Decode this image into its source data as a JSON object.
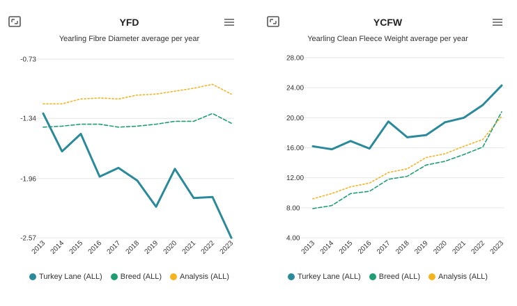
{
  "colors": {
    "turkey_lane": "#2a8a9a",
    "breed": "#1f9e73",
    "analysis": "#f5b320",
    "grid": "#e6e6e6",
    "icon": "#555555"
  },
  "panels": {
    "left": {
      "title": "YFD",
      "subtitle": "Yearling Fibre Diameter average per year",
      "icons": [
        "expand-icon",
        "menu-icon"
      ]
    },
    "right": {
      "title": "YCFW",
      "subtitle": "Yearling Clean Fleece Weight average per year",
      "icons": [
        "expand-icon",
        "menu-icon"
      ]
    }
  },
  "legend": [
    {
      "label": "Turkey Lane (ALL)",
      "color": "#2a8a9a"
    },
    {
      "label": "Breed (ALL)",
      "color": "#1f9e73"
    },
    {
      "label": "Analysis (ALL)",
      "color": "#f5b320"
    }
  ],
  "chart_data": [
    {
      "type": "line",
      "title": "YFD",
      "subtitle": "Yearling Fibre Diameter average per year",
      "categories": [
        "2013",
        "2014",
        "2015",
        "2016",
        "2017",
        "2018",
        "2019",
        "2020",
        "2021",
        "2022",
        "2023"
      ],
      "yticks": [
        "-0.73",
        "-1.34",
        "-1.96",
        "-2.57"
      ],
      "ylim": [
        -2.57,
        -0.73
      ],
      "grid": true,
      "legend_position": "bottom",
      "series": [
        {
          "name": "Turkey Lane (ALL)",
          "style": "solid",
          "color": "#2a8a9a",
          "values": [
            -1.29,
            -1.68,
            -1.5,
            -1.94,
            -1.85,
            -1.98,
            -2.25,
            -1.86,
            -2.16,
            -2.15,
            -2.57
          ]
        },
        {
          "name": "Breed (ALL)",
          "style": "dashed",
          "color": "#1f9e73",
          "values": [
            -1.43,
            -1.42,
            -1.4,
            -1.4,
            -1.43,
            -1.42,
            -1.4,
            -1.37,
            -1.37,
            -1.29,
            -1.39
          ]
        },
        {
          "name": "Analysis (ALL)",
          "style": "dotted",
          "color": "#f5b320",
          "values": [
            -1.19,
            -1.19,
            -1.14,
            -1.13,
            -1.14,
            -1.1,
            -1.09,
            -1.06,
            -1.03,
            -0.99,
            -1.09
          ]
        }
      ]
    },
    {
      "type": "line",
      "title": "YCFW",
      "subtitle": "Yearling Clean Fleece Weight average per year",
      "categories": [
        "2013",
        "2014",
        "2015",
        "2016",
        "2017",
        "2018",
        "2019",
        "2020",
        "2021",
        "2022",
        "2023"
      ],
      "yticks": [
        "28.00",
        "24.00",
        "20.00",
        "16.00",
        "12.00",
        "8.00",
        "4.00"
      ],
      "ylim": [
        4,
        28
      ],
      "grid": true,
      "legend_position": "bottom",
      "series": [
        {
          "name": "Turkey Lane (ALL)",
          "style": "solid",
          "color": "#2a8a9a",
          "values": [
            16.2,
            15.8,
            16.9,
            15.9,
            19.5,
            17.4,
            17.7,
            19.4,
            20.0,
            21.7,
            24.3
          ]
        },
        {
          "name": "Breed (ALL)",
          "style": "dashed",
          "color": "#1f9e73",
          "values": [
            7.9,
            8.3,
            9.9,
            10.2,
            11.8,
            12.2,
            13.7,
            14.2,
            15.1,
            16.1,
            20.8
          ]
        },
        {
          "name": "Analysis (ALL)",
          "style": "dotted",
          "color": "#f5b320",
          "values": [
            9.2,
            9.9,
            10.8,
            11.3,
            12.7,
            13.2,
            14.7,
            15.2,
            16.2,
            17.1,
            20.2
          ]
        }
      ]
    }
  ]
}
